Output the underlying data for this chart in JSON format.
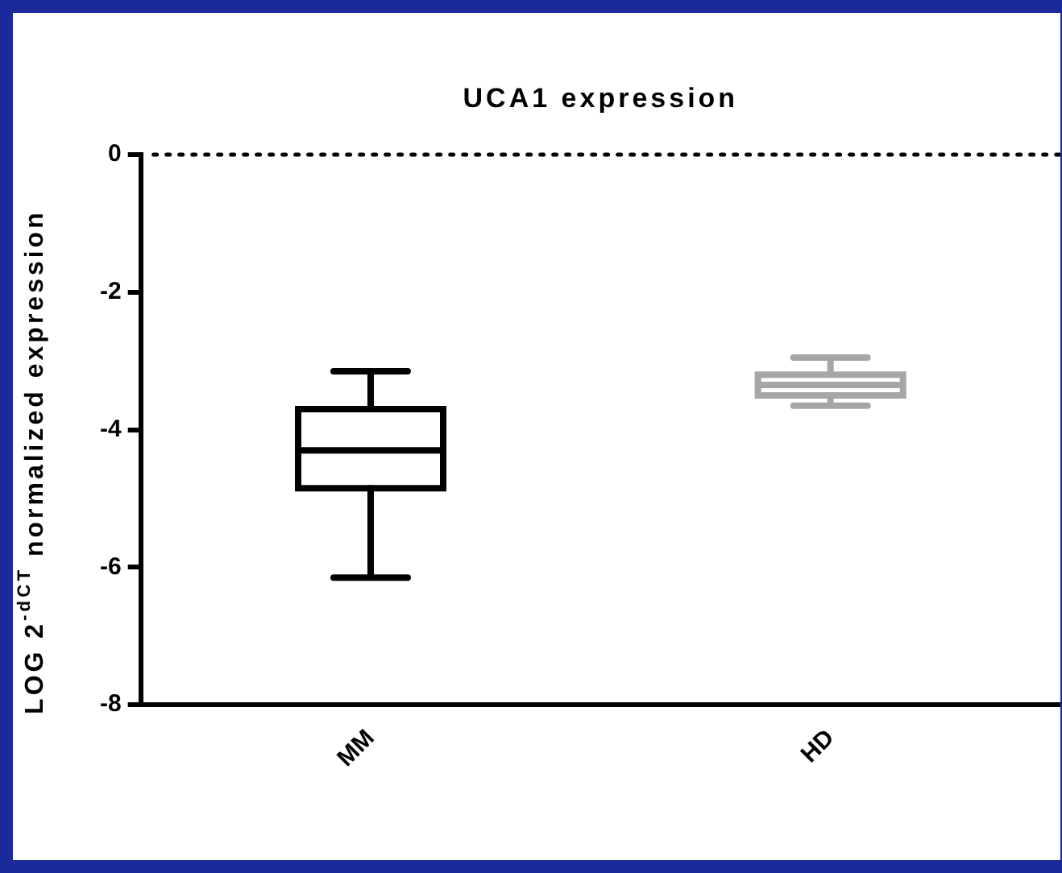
{
  "chart_data": {
    "type": "box",
    "title": "UCA1 expression",
    "ylabel": "LOG 2$^{-dCT}$ normalized expression",
    "categories": [
      "MM",
      "HD"
    ],
    "boxes": [
      {
        "low": -6.15,
        "q1": -4.85,
        "median": -4.3,
        "q3": -3.7,
        "high": -3.15
      },
      {
        "low": -3.65,
        "q1": -3.5,
        "median": -3.35,
        "q3": -3.2,
        "high": -2.95
      }
    ],
    "colors": [
      "#000000",
      "#a6a6a6"
    ],
    "ylim": [
      -8,
      0
    ],
    "yticks": [
      -8,
      -6,
      -4,
      -2,
      0
    ],
    "grid": false,
    "ref_lines": [
      {
        "axis": "y",
        "value": 0,
        "line_style": "dotted",
        "color": "#000000"
      }
    ]
  }
}
